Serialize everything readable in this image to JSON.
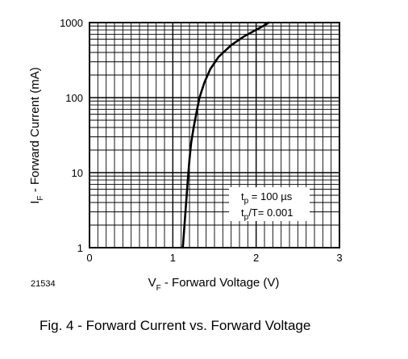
{
  "chart_data": {
    "type": "line",
    "xscale": "linear",
    "yscale": "log",
    "xlim": [
      0,
      3
    ],
    "ylim": [
      1,
      1000
    ],
    "grid": true,
    "x_ticks": [
      {
        "value": 0,
        "label": "0"
      },
      {
        "value": 1,
        "label": "1"
      },
      {
        "value": 2,
        "label": "2"
      },
      {
        "value": 3,
        "label": "3"
      }
    ],
    "y_ticks": [
      {
        "value": 1,
        "label": "1"
      },
      {
        "value": 10,
        "label": "10"
      },
      {
        "value": 100,
        "label": "100"
      },
      {
        "value": 1000,
        "label": "1000"
      }
    ],
    "xlabel": {
      "main": "V",
      "sub": "F",
      "rest": " - Forward Voltage (V)"
    },
    "ylabel": {
      "main": "I",
      "sub": "F",
      "rest": " - Forward Current (mA)"
    },
    "series": [
      {
        "x": [
          1.12,
          1.14,
          1.16,
          1.18,
          1.2,
          1.22,
          1.25,
          1.28,
          1.32,
          1.38,
          1.45,
          1.55,
          1.7,
          1.85,
          2.0,
          2.1,
          2.15
        ],
        "y": [
          1,
          2,
          4,
          8,
          15,
          25,
          40,
          60,
          100,
          160,
          240,
          350,
          500,
          650,
          800,
          920,
          1000
        ]
      }
    ],
    "annotation": {
      "line1": {
        "main": "t",
        "sub": "p",
        "rest": " = 100 µs"
      },
      "line2": {
        "main": "t",
        "sub": "p",
        "rest": "/T= 0.001"
      }
    },
    "figure_id": "21534",
    "caption": "Fig. 4 - Forward Current vs. Forward Voltage"
  }
}
